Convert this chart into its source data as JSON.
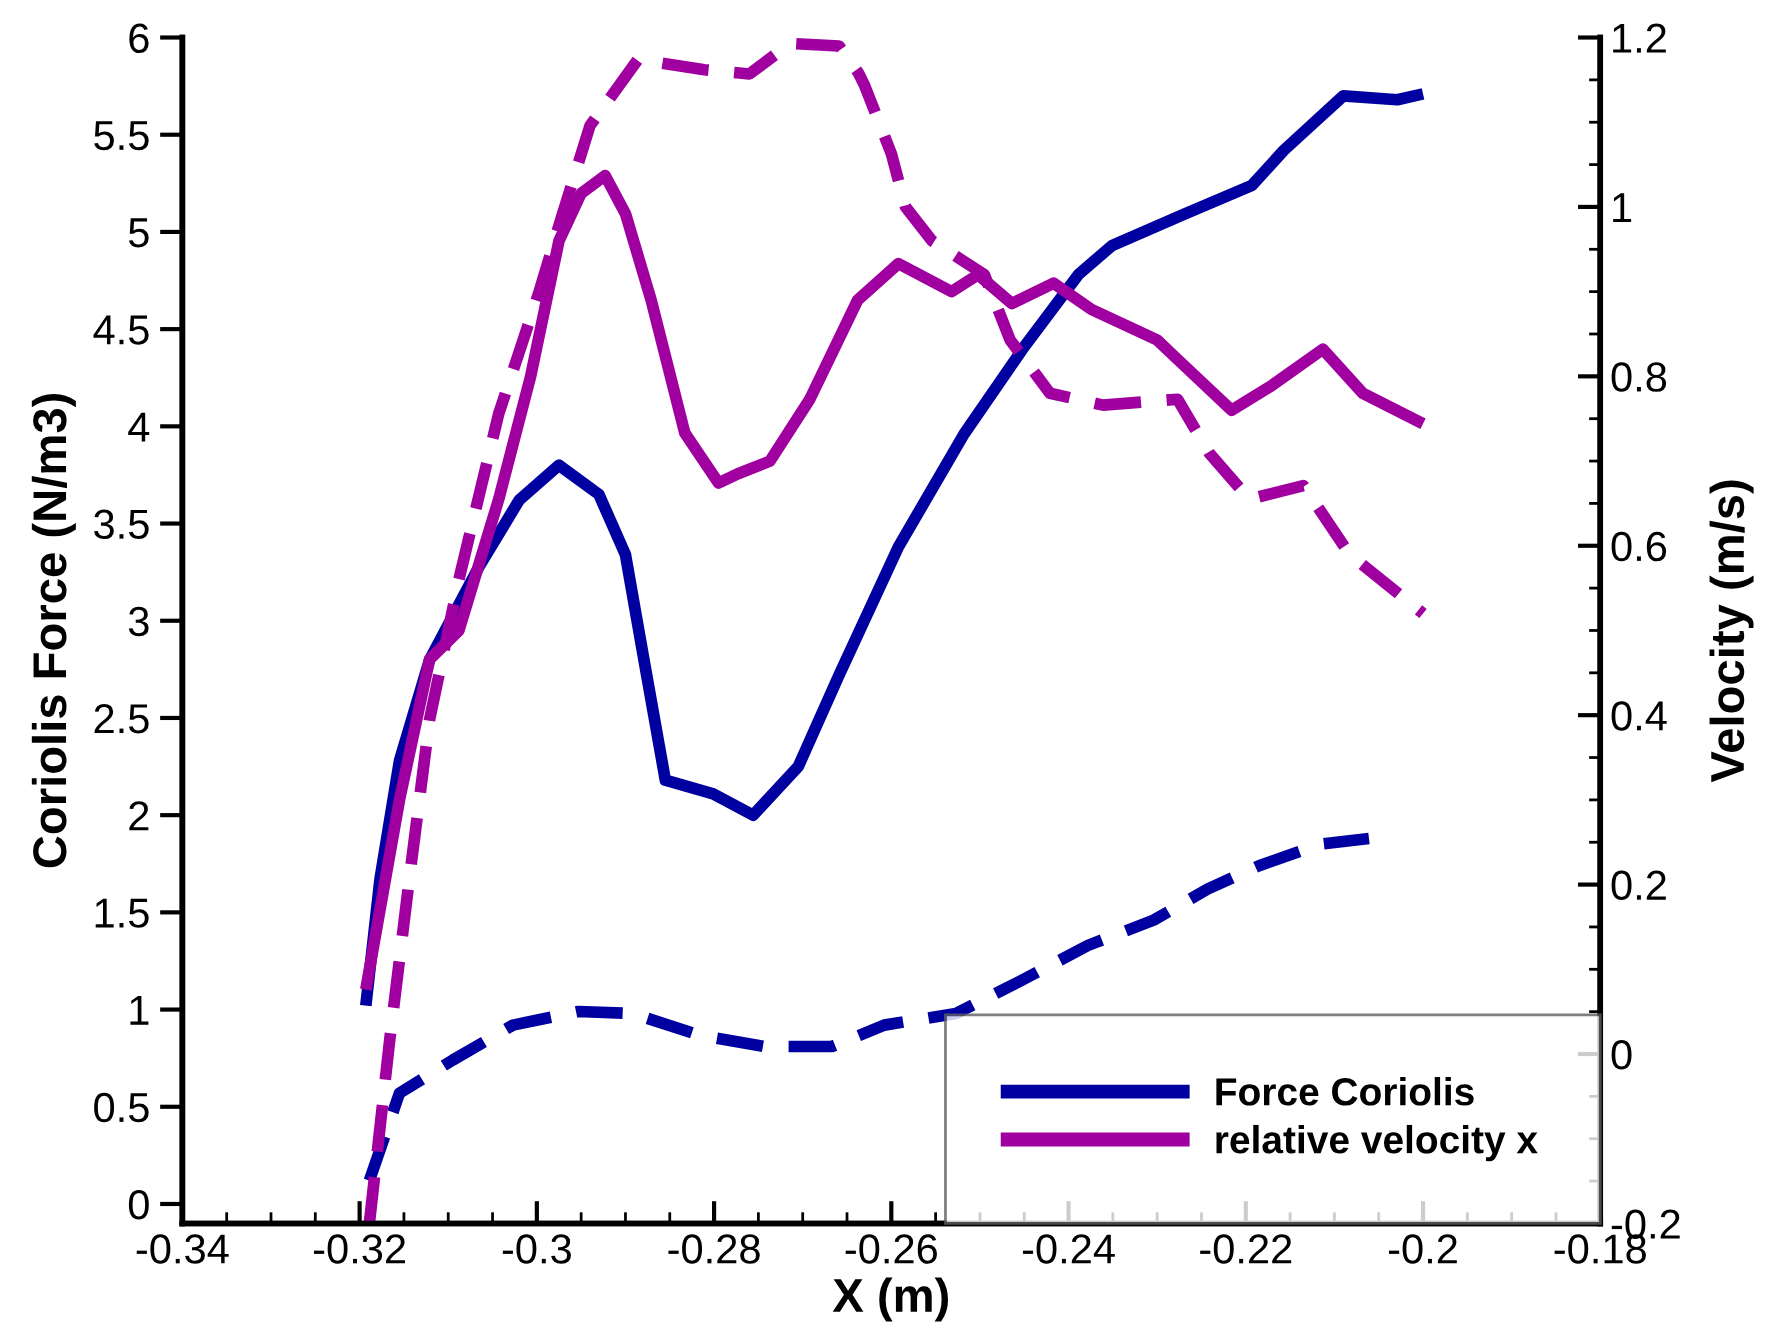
{
  "chart_data": {
    "type": "line",
    "xlabel": "X (m)",
    "ylabel": "Coriolis Force (N/m3)",
    "y2label": "Velocity (m/s)",
    "xlim": [
      -0.34,
      -0.18
    ],
    "xticks": [
      -0.34,
      -0.32,
      -0.3,
      -0.28,
      -0.26,
      -0.24,
      -0.22,
      -0.2,
      -0.18
    ],
    "ylim": [
      -0.1,
      6
    ],
    "yticks": [
      0,
      0.5,
      1,
      1.5,
      2,
      2.5,
      3,
      3.5,
      4,
      4.5,
      5,
      5.5,
      6
    ],
    "y2lim": [
      -0.2,
      1.2
    ],
    "y2ticks": [
      -0.2,
      0,
      0.2,
      0.4,
      0.6,
      0.8,
      1,
      1.2
    ],
    "grid": false,
    "legend": "bottom right",
    "marker": "none",
    "series": [
      {
        "name": "Force Coriolis",
        "color": "#0000a0",
        "line_style": "solid",
        "x": [
          -0.3193,
          -0.3177,
          -0.3155,
          -0.3121,
          -0.3065,
          -0.302,
          -0.2975,
          -0.293,
          -0.29,
          -0.2878,
          -0.2855,
          -0.2801,
          -0.2756,
          -0.2705,
          -0.2659,
          -0.2592,
          -0.2518,
          -0.245,
          -0.2389,
          -0.2351,
          -0.227,
          -0.2193,
          -0.2157,
          -0.209,
          -0.2029,
          -0.2
        ],
        "values": [
          1.02,
          1.67,
          2.28,
          2.8,
          3.28,
          3.62,
          3.8,
          3.65,
          3.34,
          2.77,
          2.18,
          2.11,
          2.0,
          2.25,
          2.72,
          3.38,
          3.96,
          4.41,
          4.78,
          4.93,
          5.09,
          5.24,
          5.42,
          5.7,
          5.68,
          5.71
        ]
      },
      {
        "name": "relative velocity x",
        "color": "#a000a0",
        "line_style": "solid",
        "axis": "y2",
        "x": [
          -0.3193,
          -0.3155,
          -0.3121,
          -0.3088,
          -0.3043,
          -0.3007,
          -0.2975,
          -0.295,
          -0.2923,
          -0.29,
          -0.2871,
          -0.2833,
          -0.2795,
          -0.2773,
          -0.2737,
          -0.2692,
          -0.2638,
          -0.2592,
          -0.2532,
          -0.2502,
          -0.2464,
          -0.2417,
          -0.2374,
          -0.23,
          -0.2277,
          -0.2216,
          -0.2171,
          -0.2113,
          -0.2068,
          -0.2
        ],
        "values": [
          0.076,
          0.3,
          0.466,
          0.5,
          0.655,
          0.8,
          0.96,
          1.016,
          1.037,
          0.992,
          0.89,
          0.733,
          0.674,
          0.685,
          0.7,
          0.773,
          0.89,
          0.933,
          0.9,
          0.92,
          0.886,
          0.91,
          0.879,
          0.843,
          0.82,
          0.76,
          0.789,
          0.832,
          0.78,
          0.744
        ]
      },
      {
        "color": "#0000a0",
        "line_style": "dashed",
        "x": [
          -0.3189,
          -0.3155,
          -0.3095,
          -0.3027,
          -0.2953,
          -0.2892,
          -0.2818,
          -0.2743,
          -0.2667,
          -0.2608,
          -0.2527,
          -0.2453,
          -0.2378,
          -0.2304,
          -0.2243,
          -0.2185,
          -0.2117,
          -0.2061
        ],
        "values": [
          0.12,
          0.57,
          0.74,
          0.92,
          0.99,
          0.98,
          0.87,
          0.81,
          0.81,
          0.92,
          0.98,
          1.15,
          1.33,
          1.46,
          1.62,
          1.74,
          1.85,
          1.88
        ]
      },
      {
        "color": "#a000a0",
        "line_style": "dashed",
        "axis": "y2",
        "x": [
          -0.3189,
          -0.3166,
          -0.3144,
          -0.3121,
          -0.3088,
          -0.3043,
          -0.2998,
          -0.2973,
          -0.294,
          -0.2886,
          -0.2811,
          -0.276,
          -0.2714,
          -0.2659,
          -0.2637,
          -0.263,
          -0.26,
          -0.2584,
          -0.2554,
          -0.2495,
          -0.2466,
          -0.2421,
          -0.2361,
          -0.2277,
          -0.2241,
          -0.2196,
          -0.2135,
          -0.2083,
          -0.2
        ],
        "values": [
          -0.2,
          0.017,
          0.206,
          0.395,
          0.56,
          0.756,
          0.898,
          0.985,
          1.096,
          1.174,
          1.162,
          1.157,
          1.193,
          1.19,
          1.158,
          1.143,
          1.063,
          1.0,
          0.96,
          0.92,
          0.843,
          0.78,
          0.766,
          0.773,
          0.709,
          0.655,
          0.671,
          0.59,
          0.52
        ]
      }
    ]
  }
}
